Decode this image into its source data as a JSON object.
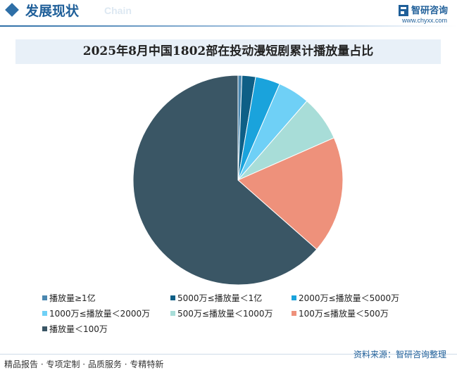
{
  "header": {
    "title": "发展现状",
    "subtitle": "Chain",
    "brand_name": "智研咨询",
    "brand_url": "www.chyxx.com"
  },
  "chart_data": {
    "type": "pie",
    "title": "2025年8月中国1802部在投动漫短剧累计播放量占比",
    "categories": [
      "播放量≥1亿",
      "5000万≤播放量＜1亿",
      "2000万≤播放量＜5000万",
      "1000万≤播放量＜2000万",
      "500万≤播放量＜1000万",
      "100万≤播放量＜500万",
      "播放量＜100万"
    ],
    "values": [
      0.6,
      2.1,
      3.8,
      4.9,
      7.0,
      18.1,
      63.5
    ],
    "colors": [
      "#4a87b0",
      "#0e5f86",
      "#1aa3dc",
      "#6fd0f6",
      "#a8ddd8",
      "#ee917b",
      "#3a5665"
    ],
    "legend_position": "bottom"
  },
  "footer": {
    "left_text": "精品报告 · 专项定制 · 品质服务 · 专精特新",
    "source": "资料来源：智研咨询整理"
  }
}
